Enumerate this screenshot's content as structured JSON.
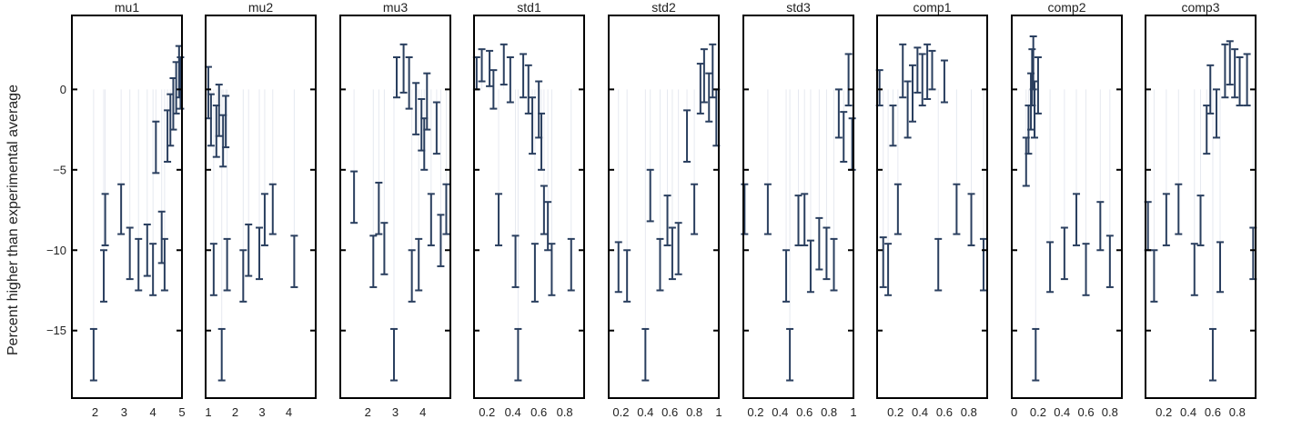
{
  "colors": {
    "errorbar": "#2a3f5f",
    "stem": "#e6e9f0",
    "frame": "#000000"
  },
  "chart_data": {
    "type": "scatter",
    "ylabel": "Percent higher than experimental average",
    "ylim": [
      -19.2,
      4.6
    ],
    "yticks": [
      0,
      -5,
      -10,
      -15
    ],
    "grid": false,
    "panels": [
      {
        "title": "mu1",
        "xlim": [
          1.2,
          5.0
        ],
        "xticks": [
          2,
          3,
          4,
          5
        ],
        "points": [
          {
            "x": 1.95,
            "low": -18.1,
            "high": -14.9
          },
          {
            "x": 2.3,
            "low": -13.2,
            "high": -10.0
          },
          {
            "x": 2.35,
            "low": -9.7,
            "high": -6.5
          },
          {
            "x": 2.9,
            "low": -9.0,
            "high": -5.9
          },
          {
            "x": 3.2,
            "low": -11.8,
            "high": -8.6
          },
          {
            "x": 3.5,
            "low": -12.5,
            "high": -9.3
          },
          {
            "x": 3.8,
            "low": -11.6,
            "high": -8.4
          },
          {
            "x": 4.0,
            "low": -12.8,
            "high": -9.6
          },
          {
            "x": 4.1,
            "low": -5.2,
            "high": -2.0
          },
          {
            "x": 4.3,
            "low": -10.8,
            "high": -7.6
          },
          {
            "x": 4.4,
            "low": -12.5,
            "high": -9.3
          },
          {
            "x": 4.5,
            "low": -4.5,
            "high": -1.3
          },
          {
            "x": 4.6,
            "low": -3.5,
            "high": -0.3
          },
          {
            "x": 4.7,
            "low": -2.5,
            "high": 0.7
          },
          {
            "x": 4.8,
            "low": -1.5,
            "high": 1.7
          },
          {
            "x": 4.9,
            "low": -0.5,
            "high": 2.7
          },
          {
            "x": 4.95,
            "low": -1.2,
            "high": 2.0
          }
        ]
      },
      {
        "title": "mu2",
        "xlim": [
          0.9,
          5.0
        ],
        "xticks": [
          1,
          2,
          3,
          4
        ],
        "points": [
          {
            "x": 1.0,
            "low": -1.8,
            "high": 1.4
          },
          {
            "x": 1.1,
            "low": -3.5,
            "high": -0.3
          },
          {
            "x": 1.2,
            "low": -12.8,
            "high": -9.6
          },
          {
            "x": 1.3,
            "low": -4.2,
            "high": -1.0
          },
          {
            "x": 1.4,
            "low": -2.9,
            "high": 0.3
          },
          {
            "x": 1.5,
            "low": -18.1,
            "high": -14.9
          },
          {
            "x": 1.55,
            "low": -4.8,
            "high": -1.6
          },
          {
            "x": 1.65,
            "low": -3.6,
            "high": -0.4
          },
          {
            "x": 1.7,
            "low": -12.5,
            "high": -9.3
          },
          {
            "x": 2.3,
            "low": -13.2,
            "high": -10.0
          },
          {
            "x": 2.5,
            "low": -11.6,
            "high": -8.4
          },
          {
            "x": 2.9,
            "low": -11.8,
            "high": -8.6
          },
          {
            "x": 3.1,
            "low": -9.7,
            "high": -6.5
          },
          {
            "x": 3.4,
            "low": -9.0,
            "high": -5.9
          },
          {
            "x": 4.2,
            "low": -12.3,
            "high": -9.1
          }
        ]
      },
      {
        "title": "mu3",
        "xlim": [
          1.0,
          5.0
        ],
        "xticks": [
          2,
          3,
          4
        ],
        "points": [
          {
            "x": 1.5,
            "low": -8.3,
            "high": -5.1
          },
          {
            "x": 2.2,
            "low": -12.3,
            "high": -9.1
          },
          {
            "x": 2.4,
            "low": -9.0,
            "high": -5.8
          },
          {
            "x": 2.6,
            "low": -11.5,
            "high": -8.3
          },
          {
            "x": 2.95,
            "low": -18.1,
            "high": -14.9
          },
          {
            "x": 3.05,
            "low": -0.5,
            "high": 2.0
          },
          {
            "x": 3.3,
            "low": -0.2,
            "high": 2.8
          },
          {
            "x": 3.5,
            "low": -1.2,
            "high": 2.0
          },
          {
            "x": 3.6,
            "low": -13.2,
            "high": -10.0
          },
          {
            "x": 3.75,
            "low": -2.8,
            "high": 0.4
          },
          {
            "x": 3.85,
            "low": -12.5,
            "high": -9.3
          },
          {
            "x": 3.95,
            "low": -3.8,
            "high": -0.6
          },
          {
            "x": 4.05,
            "low": -5.0,
            "high": -1.8
          },
          {
            "x": 4.15,
            "low": -2.5,
            "high": 1.0
          },
          {
            "x": 4.3,
            "low": -9.7,
            "high": -6.5
          },
          {
            "x": 4.5,
            "low": -4.0,
            "high": -0.8
          },
          {
            "x": 4.65,
            "low": -11.0,
            "high": -7.8
          },
          {
            "x": 4.85,
            "low": -9.0,
            "high": -5.9
          }
        ]
      },
      {
        "title": "std1",
        "xlim": [
          0.1,
          0.95
        ],
        "xticks": [
          0.2,
          0.4,
          0.6,
          0.8
        ],
        "points": [
          {
            "x": 0.12,
            "low": 0.0,
            "high": 2.0
          },
          {
            "x": 0.16,
            "low": 0.5,
            "high": 2.5
          },
          {
            "x": 0.22,
            "low": 0.2,
            "high": 2.4
          },
          {
            "x": 0.25,
            "low": -1.2,
            "high": 1.2
          },
          {
            "x": 0.29,
            "low": -9.7,
            "high": -6.5
          },
          {
            "x": 0.33,
            "low": 0.3,
            "high": 2.8
          },
          {
            "x": 0.38,
            "low": -0.8,
            "high": 2.0
          },
          {
            "x": 0.42,
            "low": -12.3,
            "high": -9.1
          },
          {
            "x": 0.44,
            "low": -18.1,
            "high": -14.9
          },
          {
            "x": 0.48,
            "low": -0.5,
            "high": 2.2
          },
          {
            "x": 0.52,
            "low": -1.5,
            "high": 1.5
          },
          {
            "x": 0.55,
            "low": -4.0,
            "high": -0.5
          },
          {
            "x": 0.57,
            "low": -13.2,
            "high": -9.6
          },
          {
            "x": 0.6,
            "low": -3.0,
            "high": 0.5
          },
          {
            "x": 0.62,
            "low": -5.0,
            "high": -1.5
          },
          {
            "x": 0.64,
            "low": -9.0,
            "high": -6.0
          },
          {
            "x": 0.67,
            "low": -10.0,
            "high": -7.0
          },
          {
            "x": 0.7,
            "low": -12.8,
            "high": -9.6
          },
          {
            "x": 0.85,
            "low": -12.5,
            "high": -9.3
          }
        ]
      },
      {
        "title": "std2",
        "xlim": [
          0.1,
          1.0
        ],
        "xticks": [
          0.2,
          0.4,
          0.6,
          0.8,
          1
        ],
        "points": [
          {
            "x": 0.18,
            "low": -12.6,
            "high": -9.5
          },
          {
            "x": 0.25,
            "low": -13.2,
            "high": -10.0
          },
          {
            "x": 0.4,
            "low": -18.1,
            "high": -14.9
          },
          {
            "x": 0.44,
            "low": -8.2,
            "high": -5.0
          },
          {
            "x": 0.52,
            "low": -12.5,
            "high": -9.3
          },
          {
            "x": 0.58,
            "low": -9.7,
            "high": -6.6
          },
          {
            "x": 0.62,
            "low": -11.8,
            "high": -8.6
          },
          {
            "x": 0.67,
            "low": -11.5,
            "high": -8.3
          },
          {
            "x": 0.74,
            "low": -4.5,
            "high": -1.3
          },
          {
            "x": 0.8,
            "low": -9.0,
            "high": -5.9
          },
          {
            "x": 0.85,
            "low": -1.5,
            "high": 1.6
          },
          {
            "x": 0.88,
            "low": -0.8,
            "high": 2.5
          },
          {
            "x": 0.92,
            "low": -2.0,
            "high": 1.0
          },
          {
            "x": 0.95,
            "low": -0.5,
            "high": 2.8
          },
          {
            "x": 0.98,
            "low": -3.5,
            "high": 0.0
          }
        ]
      },
      {
        "title": "std3",
        "xlim": [
          0.1,
          1.0
        ],
        "xticks": [
          0.2,
          0.4,
          0.6,
          0.8,
          1
        ],
        "points": [
          {
            "x": 0.11,
            "low": -9.0,
            "high": -5.9
          },
          {
            "x": 0.3,
            "low": -9.0,
            "high": -5.9
          },
          {
            "x": 0.45,
            "low": -13.2,
            "high": -10.0
          },
          {
            "x": 0.48,
            "low": -18.1,
            "high": -14.9
          },
          {
            "x": 0.55,
            "low": -9.7,
            "high": -6.6
          },
          {
            "x": 0.6,
            "low": -9.7,
            "high": -6.5
          },
          {
            "x": 0.65,
            "low": -12.6,
            "high": -9.4
          },
          {
            "x": 0.72,
            "low": -11.2,
            "high": -8.0
          },
          {
            "x": 0.78,
            "low": -11.8,
            "high": -8.6
          },
          {
            "x": 0.84,
            "low": -12.5,
            "high": -9.3
          },
          {
            "x": 0.88,
            "low": -3.0,
            "high": 0.0
          },
          {
            "x": 0.92,
            "low": -4.5,
            "high": -1.4
          },
          {
            "x": 0.96,
            "low": -1.0,
            "high": 2.2
          },
          {
            "x": 0.99,
            "low": -5.0,
            "high": -1.8
          }
        ]
      },
      {
        "title": "comp1",
        "xlim": [
          0.05,
          0.95
        ],
        "xticks": [
          0.2,
          0.4,
          0.6,
          0.8
        ],
        "points": [
          {
            "x": 0.07,
            "low": -1.0,
            "high": 1.2
          },
          {
            "x": 0.1,
            "low": -12.3,
            "high": -9.2
          },
          {
            "x": 0.14,
            "low": -12.8,
            "high": -9.6
          },
          {
            "x": 0.18,
            "low": -3.5,
            "high": -1.0
          },
          {
            "x": 0.22,
            "low": -9.0,
            "high": -5.9
          },
          {
            "x": 0.26,
            "low": -0.5,
            "high": 2.8
          },
          {
            "x": 0.3,
            "low": -3.0,
            "high": 0.5
          },
          {
            "x": 0.34,
            "low": -2.0,
            "high": 1.5
          },
          {
            "x": 0.38,
            "low": -0.2,
            "high": 2.6
          },
          {
            "x": 0.42,
            "low": -1.0,
            "high": 2.2
          },
          {
            "x": 0.46,
            "low": -0.6,
            "high": 2.8
          },
          {
            "x": 0.5,
            "low": 0.0,
            "high": 2.4
          },
          {
            "x": 0.55,
            "low": -12.5,
            "high": -9.3
          },
          {
            "x": 0.6,
            "low": -0.8,
            "high": 1.8
          },
          {
            "x": 0.7,
            "low": -9.0,
            "high": -5.9
          },
          {
            "x": 0.82,
            "low": -9.7,
            "high": -6.5
          },
          {
            "x": 0.92,
            "low": -12.5,
            "high": -9.3
          }
        ]
      },
      {
        "title": "comp2",
        "xlim": [
          -0.02,
          0.9
        ],
        "xticks": [
          0,
          0.2,
          0.4,
          0.6,
          0.8
        ],
        "points": [
          {
            "x": 0.1,
            "low": -6.0,
            "high": -3.0
          },
          {
            "x": 0.12,
            "low": -4.0,
            "high": -1.0
          },
          {
            "x": 0.14,
            "low": -2.5,
            "high": 1.0
          },
          {
            "x": 0.15,
            "low": -1.0,
            "high": 2.5
          },
          {
            "x": 0.16,
            "low": 0.0,
            "high": 3.3
          },
          {
            "x": 0.17,
            "low": -3.0,
            "high": 0.5
          },
          {
            "x": 0.18,
            "low": -18.1,
            "high": -14.9
          },
          {
            "x": 0.2,
            "low": -1.5,
            "high": 2.0
          },
          {
            "x": 0.3,
            "low": -12.6,
            "high": -9.5
          },
          {
            "x": 0.42,
            "low": -11.8,
            "high": -8.6
          },
          {
            "x": 0.52,
            "low": -9.7,
            "high": -6.5
          },
          {
            "x": 0.6,
            "low": -12.8,
            "high": -9.6
          },
          {
            "x": 0.72,
            "low": -10.0,
            "high": -7.0
          },
          {
            "x": 0.8,
            "low": -12.3,
            "high": -9.1
          }
        ]
      },
      {
        "title": "comp3",
        "xlim": [
          0.05,
          0.95
        ],
        "xticks": [
          0.2,
          0.4,
          0.6,
          0.8
        ],
        "points": [
          {
            "x": 0.07,
            "low": -10.0,
            "high": -7.0
          },
          {
            "x": 0.12,
            "low": -13.2,
            "high": -10.0
          },
          {
            "x": 0.22,
            "low": -9.7,
            "high": -6.5
          },
          {
            "x": 0.32,
            "low": -9.0,
            "high": -5.9
          },
          {
            "x": 0.45,
            "low": -12.8,
            "high": -9.6
          },
          {
            "x": 0.5,
            "low": -9.7,
            "high": -6.6
          },
          {
            "x": 0.55,
            "low": -4.0,
            "high": -1.0
          },
          {
            "x": 0.58,
            "low": -1.5,
            "high": 1.5
          },
          {
            "x": 0.6,
            "low": -18.1,
            "high": -14.9
          },
          {
            "x": 0.63,
            "low": -3.0,
            "high": 0.0
          },
          {
            "x": 0.66,
            "low": -12.6,
            "high": -9.5
          },
          {
            "x": 0.7,
            "low": -0.5,
            "high": 2.8
          },
          {
            "x": 0.74,
            "low": 0.3,
            "high": 3.0
          },
          {
            "x": 0.78,
            "low": -0.5,
            "high": 2.5
          },
          {
            "x": 0.82,
            "low": -1.0,
            "high": 2.0
          },
          {
            "x": 0.88,
            "low": -1.0,
            "high": 2.2
          },
          {
            "x": 0.93,
            "low": -11.8,
            "high": -8.6
          }
        ]
      }
    ]
  }
}
